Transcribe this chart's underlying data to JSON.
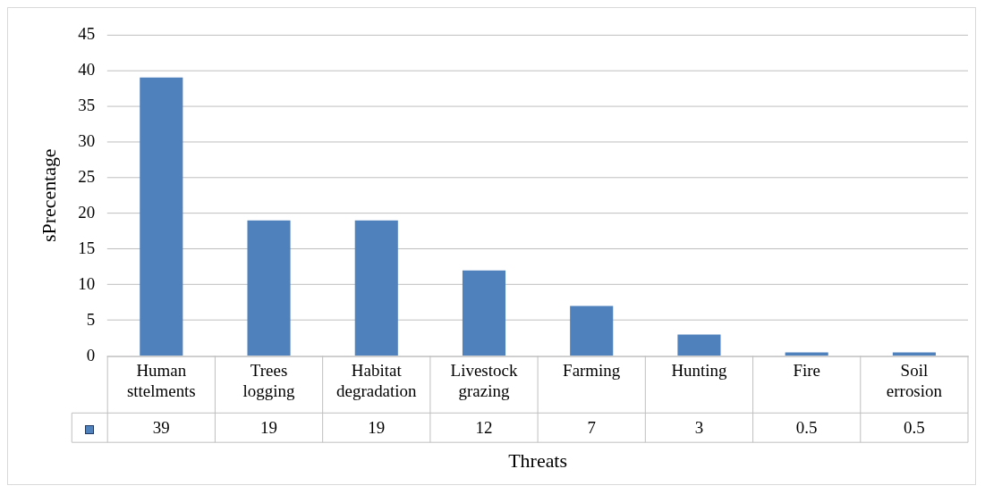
{
  "chart_data": {
    "type": "bar",
    "categories": [
      "Human sttelments",
      "Trees logging",
      "Habitat degradation",
      "Livestock grazing",
      "Farming",
      "Hunting",
      "Fire",
      "Soil errosion"
    ],
    "values": [
      39,
      19,
      19,
      12,
      7,
      3,
      0.5,
      0.5
    ],
    "color": "#4f81bd",
    "xlabel": "Threats",
    "ylabel": "sPrecentage",
    "ylim": [
      0,
      45
    ],
    "yticks": [
      0,
      5,
      10,
      15,
      20,
      25,
      30,
      35,
      40,
      45
    ],
    "grid": "y",
    "data_labels": true
  }
}
